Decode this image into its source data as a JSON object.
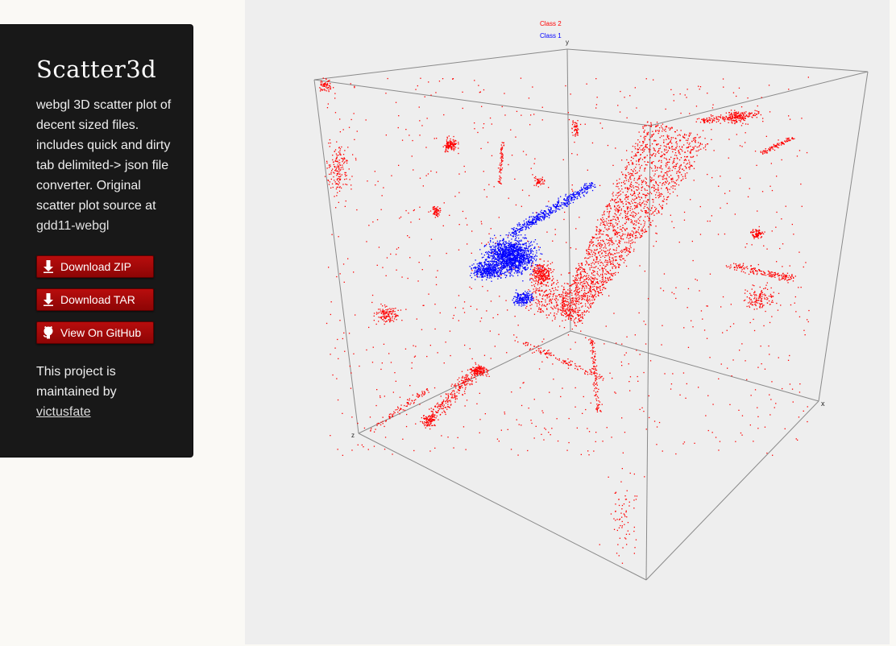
{
  "sidebar": {
    "title": "Scatter3d",
    "description": "webgl 3D scatter plot of decent sized files. includes quick and dirty tab delimited-> json file converter. Original scatter plot source at",
    "source_link": "gdd11-webgl",
    "buttons": [
      {
        "label": "Download ZIP",
        "icon": "download-icon"
      },
      {
        "label": "Download TAR",
        "icon": "download-icon"
      },
      {
        "label": "View On GitHub",
        "icon": "github-icon"
      }
    ],
    "maintainer_text": "This project is maintained by",
    "maintainer_link": "victusfate"
  },
  "chart_data": {
    "type": "scatter",
    "dimensions": 3,
    "axis_labels": {
      "x": "x",
      "y": "y",
      "z": "z"
    },
    "legend": {
      "placement": "top-center",
      "entries": [
        {
          "name": "Class 2",
          "color": "#ff0000"
        },
        {
          "name": "Class 1",
          "color": "#0000ff"
        }
      ]
    },
    "series": [
      {
        "name": "Class 2",
        "color": "#ff0000"
      },
      {
        "name": "Class 1",
        "color": "#0000ff"
      }
    ],
    "grid": false,
    "bounding_box": true
  }
}
